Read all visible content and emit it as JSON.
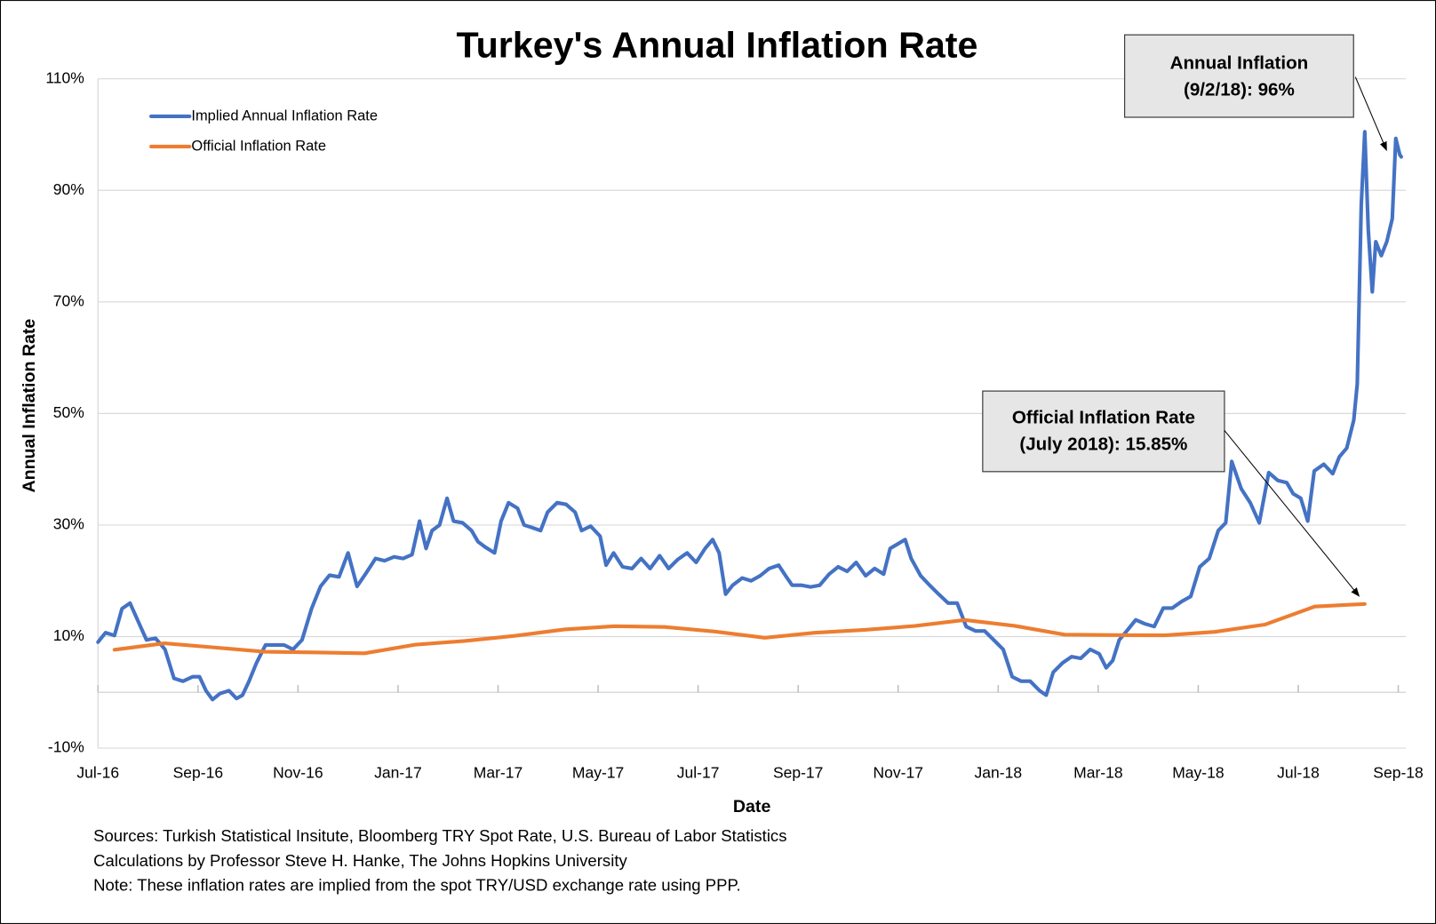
{
  "chart_data": {
    "type": "line",
    "title": "Turkey's Annual Inflation Rate",
    "xlabel": "Date",
    "ylabel": "Annual Inflation Rate",
    "xlim": [
      0,
      26.15
    ],
    "xticks": [
      {
        "value": 0,
        "label": "Jul-16"
      },
      {
        "value": 2,
        "label": "Sep-16"
      },
      {
        "value": 4,
        "label": "Nov-16"
      },
      {
        "value": 6,
        "label": "Jan-17"
      },
      {
        "value": 8,
        "label": "Mar-17"
      },
      {
        "value": 10,
        "label": "May-17"
      },
      {
        "value": 12,
        "label": "Jul-17"
      },
      {
        "value": 14,
        "label": "Sep-17"
      },
      {
        "value": 16,
        "label": "Nov-17"
      },
      {
        "value": 18,
        "label": "Jan-18"
      },
      {
        "value": 20,
        "label": "Mar-18"
      },
      {
        "value": 22,
        "label": "May-18"
      },
      {
        "value": 24,
        "label": "Jul-18"
      },
      {
        "value": 26,
        "label": "Sep-18"
      }
    ],
    "ylim": [
      -10,
      110
    ],
    "yticks": [
      {
        "value": -10,
        "label": "-10%"
      },
      {
        "value": 10,
        "label": "10%"
      },
      {
        "value": 30,
        "label": "30%"
      },
      {
        "value": 50,
        "label": "50%"
      },
      {
        "value": 70,
        "label": "70%"
      },
      {
        "value": 90,
        "label": "90%"
      },
      {
        "value": 110,
        "label": "110%"
      }
    ],
    "grid": true,
    "legend": "upper left",
    "series": [
      {
        "name": "Implied Annual Inflation Rate",
        "color": "#4472c4",
        "x": [
          0,
          0.15,
          0.33,
          0.48,
          0.64,
          0.79,
          0.97,
          1.15,
          1.34,
          1.52,
          1.7,
          1.89,
          2.03,
          2.16,
          2.29,
          2.44,
          2.62,
          2.77,
          2.89,
          3.02,
          3.17,
          3.35,
          3.53,
          3.72,
          3.9,
          4.08,
          4.27,
          4.45,
          4.63,
          4.82,
          5.0,
          5.18,
          5.37,
          5.55,
          5.73,
          5.92,
          6.1,
          6.28,
          6.43,
          6.56,
          6.68,
          6.83,
          6.98,
          7.11,
          7.29,
          7.47,
          7.6,
          7.75,
          7.93,
          8.06,
          8.21,
          8.39,
          8.52,
          8.66,
          8.85,
          8.99,
          9.18,
          9.36,
          9.54,
          9.67,
          9.85,
          10.04,
          10.16,
          10.31,
          10.49,
          10.68,
          10.86,
          11.04,
          11.23,
          11.41,
          11.59,
          11.78,
          11.96,
          12.14,
          12.29,
          12.42,
          12.55,
          12.69,
          12.88,
          13.06,
          13.24,
          13.42,
          13.61,
          13.75,
          13.88,
          14.07,
          14.25,
          14.43,
          14.62,
          14.8,
          14.98,
          15.16,
          15.35,
          15.53,
          15.71,
          15.84,
          15.99,
          16.14,
          16.26,
          16.45,
          16.63,
          16.81,
          17.0,
          17.18,
          17.36,
          17.55,
          17.73,
          17.91,
          18.1,
          18.28,
          18.46,
          18.64,
          18.83,
          18.96,
          19.1,
          19.29,
          19.47,
          19.65,
          19.84,
          20.02,
          20.16,
          20.29,
          20.42,
          20.57,
          20.75,
          20.93,
          21.12,
          21.3,
          21.48,
          21.67,
          21.85,
          22.03,
          22.22,
          22.4,
          22.55,
          22.67,
          22.86,
          23.04,
          23.22,
          23.41,
          23.59,
          23.77,
          23.9,
          24.05,
          24.19,
          24.32,
          24.51,
          24.69,
          24.82,
          24.97,
          25.11,
          25.18,
          25.26,
          25.33,
          25.4,
          25.48,
          25.55,
          25.66,
          25.77,
          25.88,
          25.95,
          26.03,
          26.06
        ],
        "values": [
          9,
          10.7,
          10.2,
          15,
          16,
          13,
          9.4,
          9.7,
          7.7,
          2.5,
          2,
          2.8,
          2.8,
          0.3,
          -1.3,
          -0.2,
          0.3,
          -1.1,
          -0.5,
          2,
          5.3,
          8.5,
          8.5,
          8.5,
          7.7,
          9.4,
          15,
          19,
          21,
          20.7,
          25,
          19,
          21.5,
          24,
          23.6,
          24.3,
          24,
          24.7,
          30.7,
          25.8,
          29,
          30,
          34.8,
          30.7,
          30.4,
          29,
          27,
          26,
          25,
          30.7,
          34,
          33,
          30,
          29.6,
          29,
          32.3,
          34,
          33.7,
          32.3,
          29,
          29.8,
          28,
          22.8,
          25,
          22.5,
          22.2,
          24,
          22.2,
          24.5,
          22.2,
          23.8,
          25,
          23.3,
          25.8,
          27.4,
          25,
          17.6,
          19.2,
          20.5,
          20,
          20.9,
          22.2,
          22.8,
          20.9,
          19.2,
          19.2,
          18.9,
          19.2,
          21.2,
          22.5,
          21.7,
          23.3,
          20.9,
          22.2,
          21.2,
          25.8,
          26.6,
          27.4,
          24,
          20.9,
          19.2,
          17.6,
          16,
          16,
          11.8,
          11,
          11,
          9.4,
          7.7,
          2.8,
          2,
          2,
          0.3,
          -0.5,
          3.6,
          5.3,
          6.4,
          6.1,
          7.7,
          6.9,
          4.4,
          5.7,
          9.4,
          11,
          13,
          12.3,
          11.8,
          15.1,
          15.1,
          16.3,
          17.2,
          22.5,
          24,
          29,
          30.4,
          41.4,
          36.5,
          34,
          30.4,
          39.4,
          38,
          37.6,
          35.6,
          34.8,
          30.7,
          39.7,
          40.9,
          39.2,
          42.2,
          43.8,
          48.8,
          55.3,
          87.4,
          100.5,
          83,
          71.8,
          80.8,
          78.3,
          80.8,
          84.9,
          99.3,
          96.4,
          96
        ]
      },
      {
        "name": "Official Inflation Rate",
        "color": "#ed7d31",
        "x": [
          0.33,
          1.33,
          2.33,
          3.33,
          4.33,
          5.33,
          6.33,
          7.33,
          8.33,
          9.33,
          10.33,
          11.33,
          12.33,
          13.33,
          14.33,
          15.33,
          16.33,
          17.33,
          18.33,
          19.33,
          20.33,
          21.33,
          22.33,
          23.33,
          24.33,
          25.33
        ],
        "values": [
          7.64,
          8.79,
          8.05,
          7.28,
          7.16,
          7.0,
          8.53,
          9.22,
          10.13,
          11.29,
          11.87,
          11.72,
          10.9,
          9.79,
          10.68,
          11.2,
          11.9,
          12.98,
          11.92,
          10.35,
          10.26,
          10.23,
          10.85,
          12.15,
          15.39,
          15.85
        ]
      }
    ],
    "annotations": [
      {
        "lines": [
          "Annual Inflation",
          "(9/2/18): 96%"
        ]
      },
      {
        "lines": [
          "Official Inflation Rate",
          "(July 2018): 15.85%"
        ]
      }
    ],
    "notes": [
      "Sources: Turkish Statistical Insitute, Bloomberg TRY Spot Rate, U.S. Bureau of Labor Statistics",
      "Calculations by Professor Steve H. Hanke, The Johns Hopkins University",
      "Note: These inflation rates are implied from the spot TRY/USD exchange rate using PPP."
    ]
  }
}
